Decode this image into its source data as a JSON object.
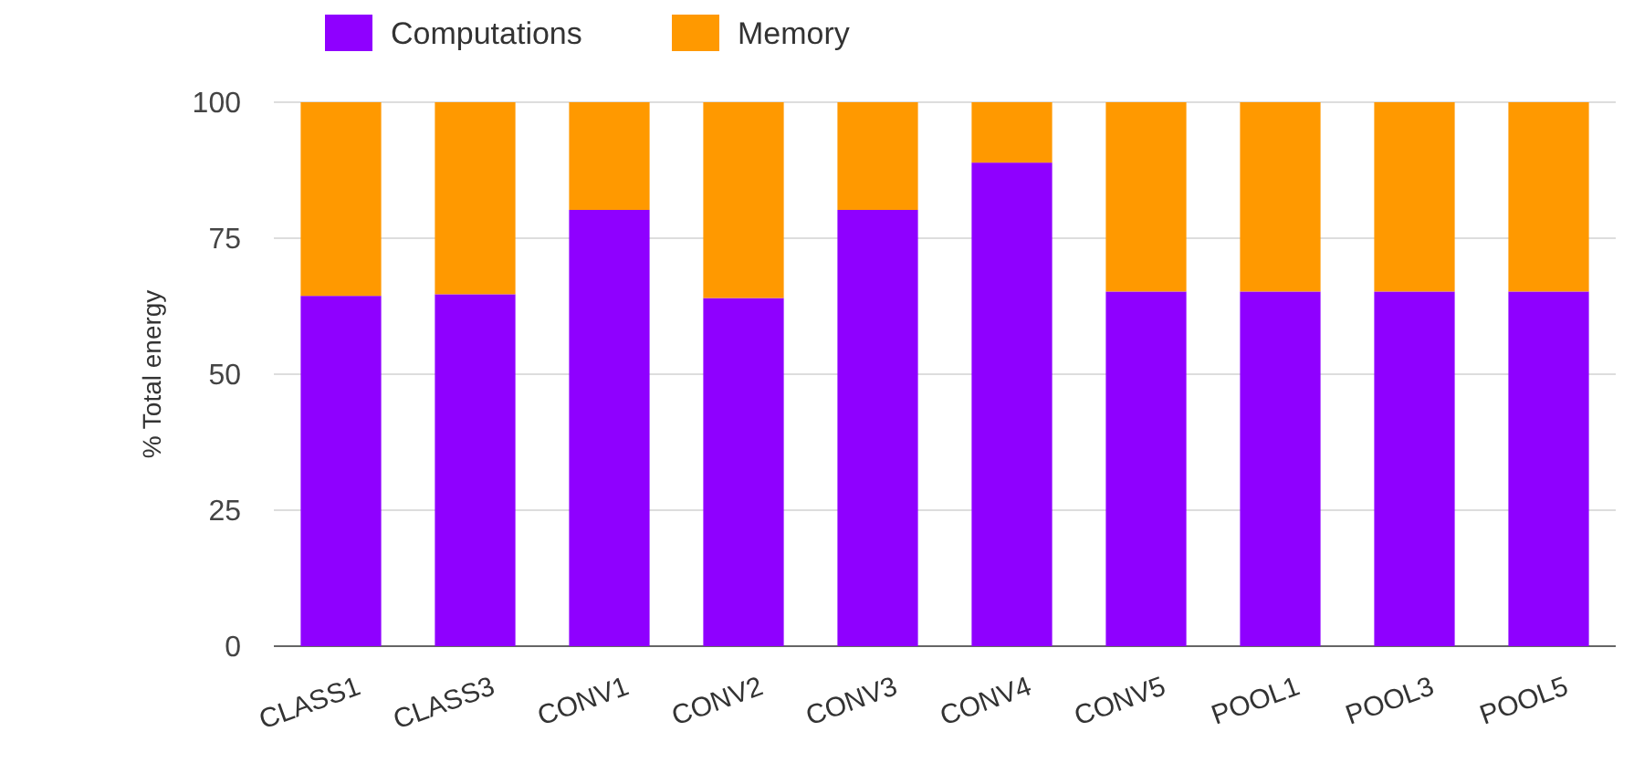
{
  "chart_data": {
    "type": "bar",
    "stacked": true,
    "ylabel": "% Total energy",
    "categories": [
      "CLASS1",
      "CLASS3",
      "CONV1",
      "CONV2",
      "CONV3",
      "CONV4",
      "CONV5",
      "POOL1",
      "POOL3",
      "POOL5"
    ],
    "series": [
      {
        "name": "Computations",
        "color": "#8f00ff",
        "values": [
          64.4,
          64.7,
          80.2,
          64.0,
          80.2,
          88.9,
          65.2,
          65.2,
          65.2,
          65.2
        ]
      },
      {
        "name": "Memory",
        "color": "#ff9900",
        "values": [
          35.6,
          35.3,
          19.8,
          36.0,
          19.8,
          11.1,
          34.8,
          34.8,
          34.8,
          34.8
        ]
      }
    ],
    "ylim": [
      0,
      100
    ],
    "yticks": [
      0,
      25,
      50,
      75,
      100
    ],
    "grid": "y",
    "legend": "top left"
  }
}
